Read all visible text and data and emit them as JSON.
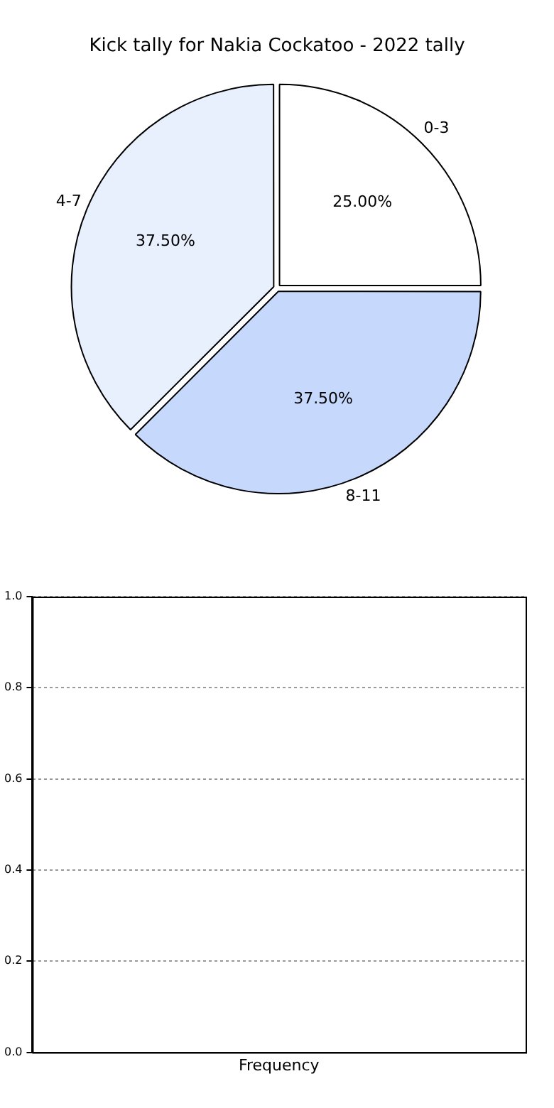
{
  "chart_data": [
    {
      "type": "pie",
      "title": "Kick tally for Nakia Cockatoo - 2022 tally",
      "categories": [
        "0-3",
        "8-11",
        "4-7"
      ],
      "values": [
        25,
        37.5,
        37.5
      ],
      "colors": [
        "#ffffff",
        "#c6d9fd",
        "#e8f0fe"
      ],
      "value_labels": [
        "25.00%",
        "37.50%",
        "37.50%"
      ],
      "legend": false
    },
    {
      "type": "bar",
      "categories": [
        "Frequency"
      ],
      "values": [
        0
      ],
      "ylim": [
        0,
        1
      ],
      "yticks": [
        {
          "value": 0,
          "label": "0.0"
        },
        {
          "value": 0.2,
          "label": "0.2"
        },
        {
          "value": 0.4,
          "label": "0.4"
        },
        {
          "value": 0.6,
          "label": "0.6"
        },
        {
          "value": 0.8,
          "label": "0.8"
        },
        {
          "value": 1,
          "label": "1.0"
        }
      ],
      "grid": "y",
      "legend": false
    }
  ]
}
